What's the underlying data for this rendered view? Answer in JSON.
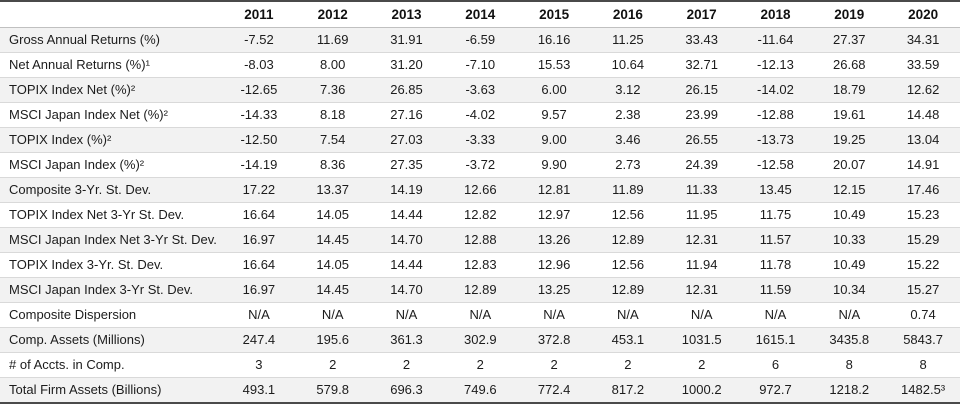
{
  "colors": {
    "rule_dark": "#4a4a4a",
    "rule_light": "#d9d9d9",
    "row_alt_background": "#f2f2f2",
    "text": "#1c1c1c"
  },
  "chart_data": {
    "type": "table",
    "title": "",
    "columns": [
      "2011",
      "2012",
      "2013",
      "2014",
      "2015",
      "2016",
      "2017",
      "2018",
      "2019",
      "2020"
    ],
    "rows": [
      {
        "label": "Gross Annual Returns (%)",
        "values": [
          "-7.52",
          "11.69",
          "31.91",
          "-6.59",
          "16.16",
          "11.25",
          "33.43",
          "-11.64",
          "27.37",
          "34.31"
        ]
      },
      {
        "label": "Net Annual Returns (%)¹",
        "values": [
          "-8.03",
          "8.00",
          "31.20",
          "-7.10",
          "15.53",
          "10.64",
          "32.71",
          "-12.13",
          "26.68",
          "33.59"
        ]
      },
      {
        "label": "TOPIX Index Net (%)²",
        "values": [
          "-12.65",
          "7.36",
          "26.85",
          "-3.63",
          "6.00",
          "3.12",
          "26.15",
          "-14.02",
          "18.79",
          "12.62"
        ]
      },
      {
        "label": "MSCI Japan Index Net (%)²",
        "values": [
          "-14.33",
          "8.18",
          "27.16",
          "-4.02",
          "9.57",
          "2.38",
          "23.99",
          "-12.88",
          "19.61",
          "14.48"
        ]
      },
      {
        "label": "TOPIX Index (%)²",
        "values": [
          "-12.50",
          "7.54",
          "27.03",
          "-3.33",
          "9.00",
          "3.46",
          "26.55",
          "-13.73",
          "19.25",
          "13.04"
        ]
      },
      {
        "label": "MSCI Japan Index (%)²",
        "values": [
          "-14.19",
          "8.36",
          "27.35",
          "-3.72",
          "9.90",
          "2.73",
          "24.39",
          "-12.58",
          "20.07",
          "14.91"
        ]
      },
      {
        "label": "Composite 3-Yr. St. Dev.",
        "values": [
          "17.22",
          "13.37",
          "14.19",
          "12.66",
          "12.81",
          "11.89",
          "11.33",
          "13.45",
          "12.15",
          "17.46"
        ]
      },
      {
        "label": "TOPIX Index Net 3-Yr St. Dev.",
        "values": [
          "16.64",
          "14.05",
          "14.44",
          "12.82",
          "12.97",
          "12.56",
          "11.95",
          "11.75",
          "10.49",
          "15.23"
        ]
      },
      {
        "label": "MSCI Japan Index Net 3-Yr St. Dev.",
        "values": [
          "16.97",
          "14.45",
          "14.70",
          "12.88",
          "13.26",
          "12.89",
          "12.31",
          "11.57",
          "10.33",
          "15.29"
        ]
      },
      {
        "label": "TOPIX Index 3-Yr. St. Dev.",
        "values": [
          "16.64",
          "14.05",
          "14.44",
          "12.83",
          "12.96",
          "12.56",
          "11.94",
          "11.78",
          "10.49",
          "15.22"
        ]
      },
      {
        "label": "MSCI Japan Index 3-Yr St. Dev.",
        "values": [
          "16.97",
          "14.45",
          "14.70",
          "12.89",
          "13.25",
          "12.89",
          "12.31",
          "11.59",
          "10.34",
          "15.27"
        ]
      },
      {
        "label": "Composite Dispersion",
        "values": [
          "N/A",
          "N/A",
          "N/A",
          "N/A",
          "N/A",
          "N/A",
          "N/A",
          "N/A",
          "N/A",
          "0.74"
        ]
      },
      {
        "label": "Comp. Assets (Millions)",
        "values": [
          "247.4",
          "195.6",
          "361.3",
          "302.9",
          "372.8",
          "453.1",
          "1031.5",
          "1615.1",
          "3435.8",
          "5843.7"
        ]
      },
      {
        "label": "# of Accts. in Comp.",
        "values": [
          "3",
          "2",
          "2",
          "2",
          "2",
          "2",
          "2",
          "6",
          "8",
          "8"
        ]
      },
      {
        "label": "Total Firm Assets (Billions)",
        "values": [
          "493.1",
          "579.8",
          "696.3",
          "749.6",
          "772.4",
          "817.2",
          "1000.2",
          "972.7",
          "1218.2",
          "1482.5³"
        ]
      }
    ]
  }
}
